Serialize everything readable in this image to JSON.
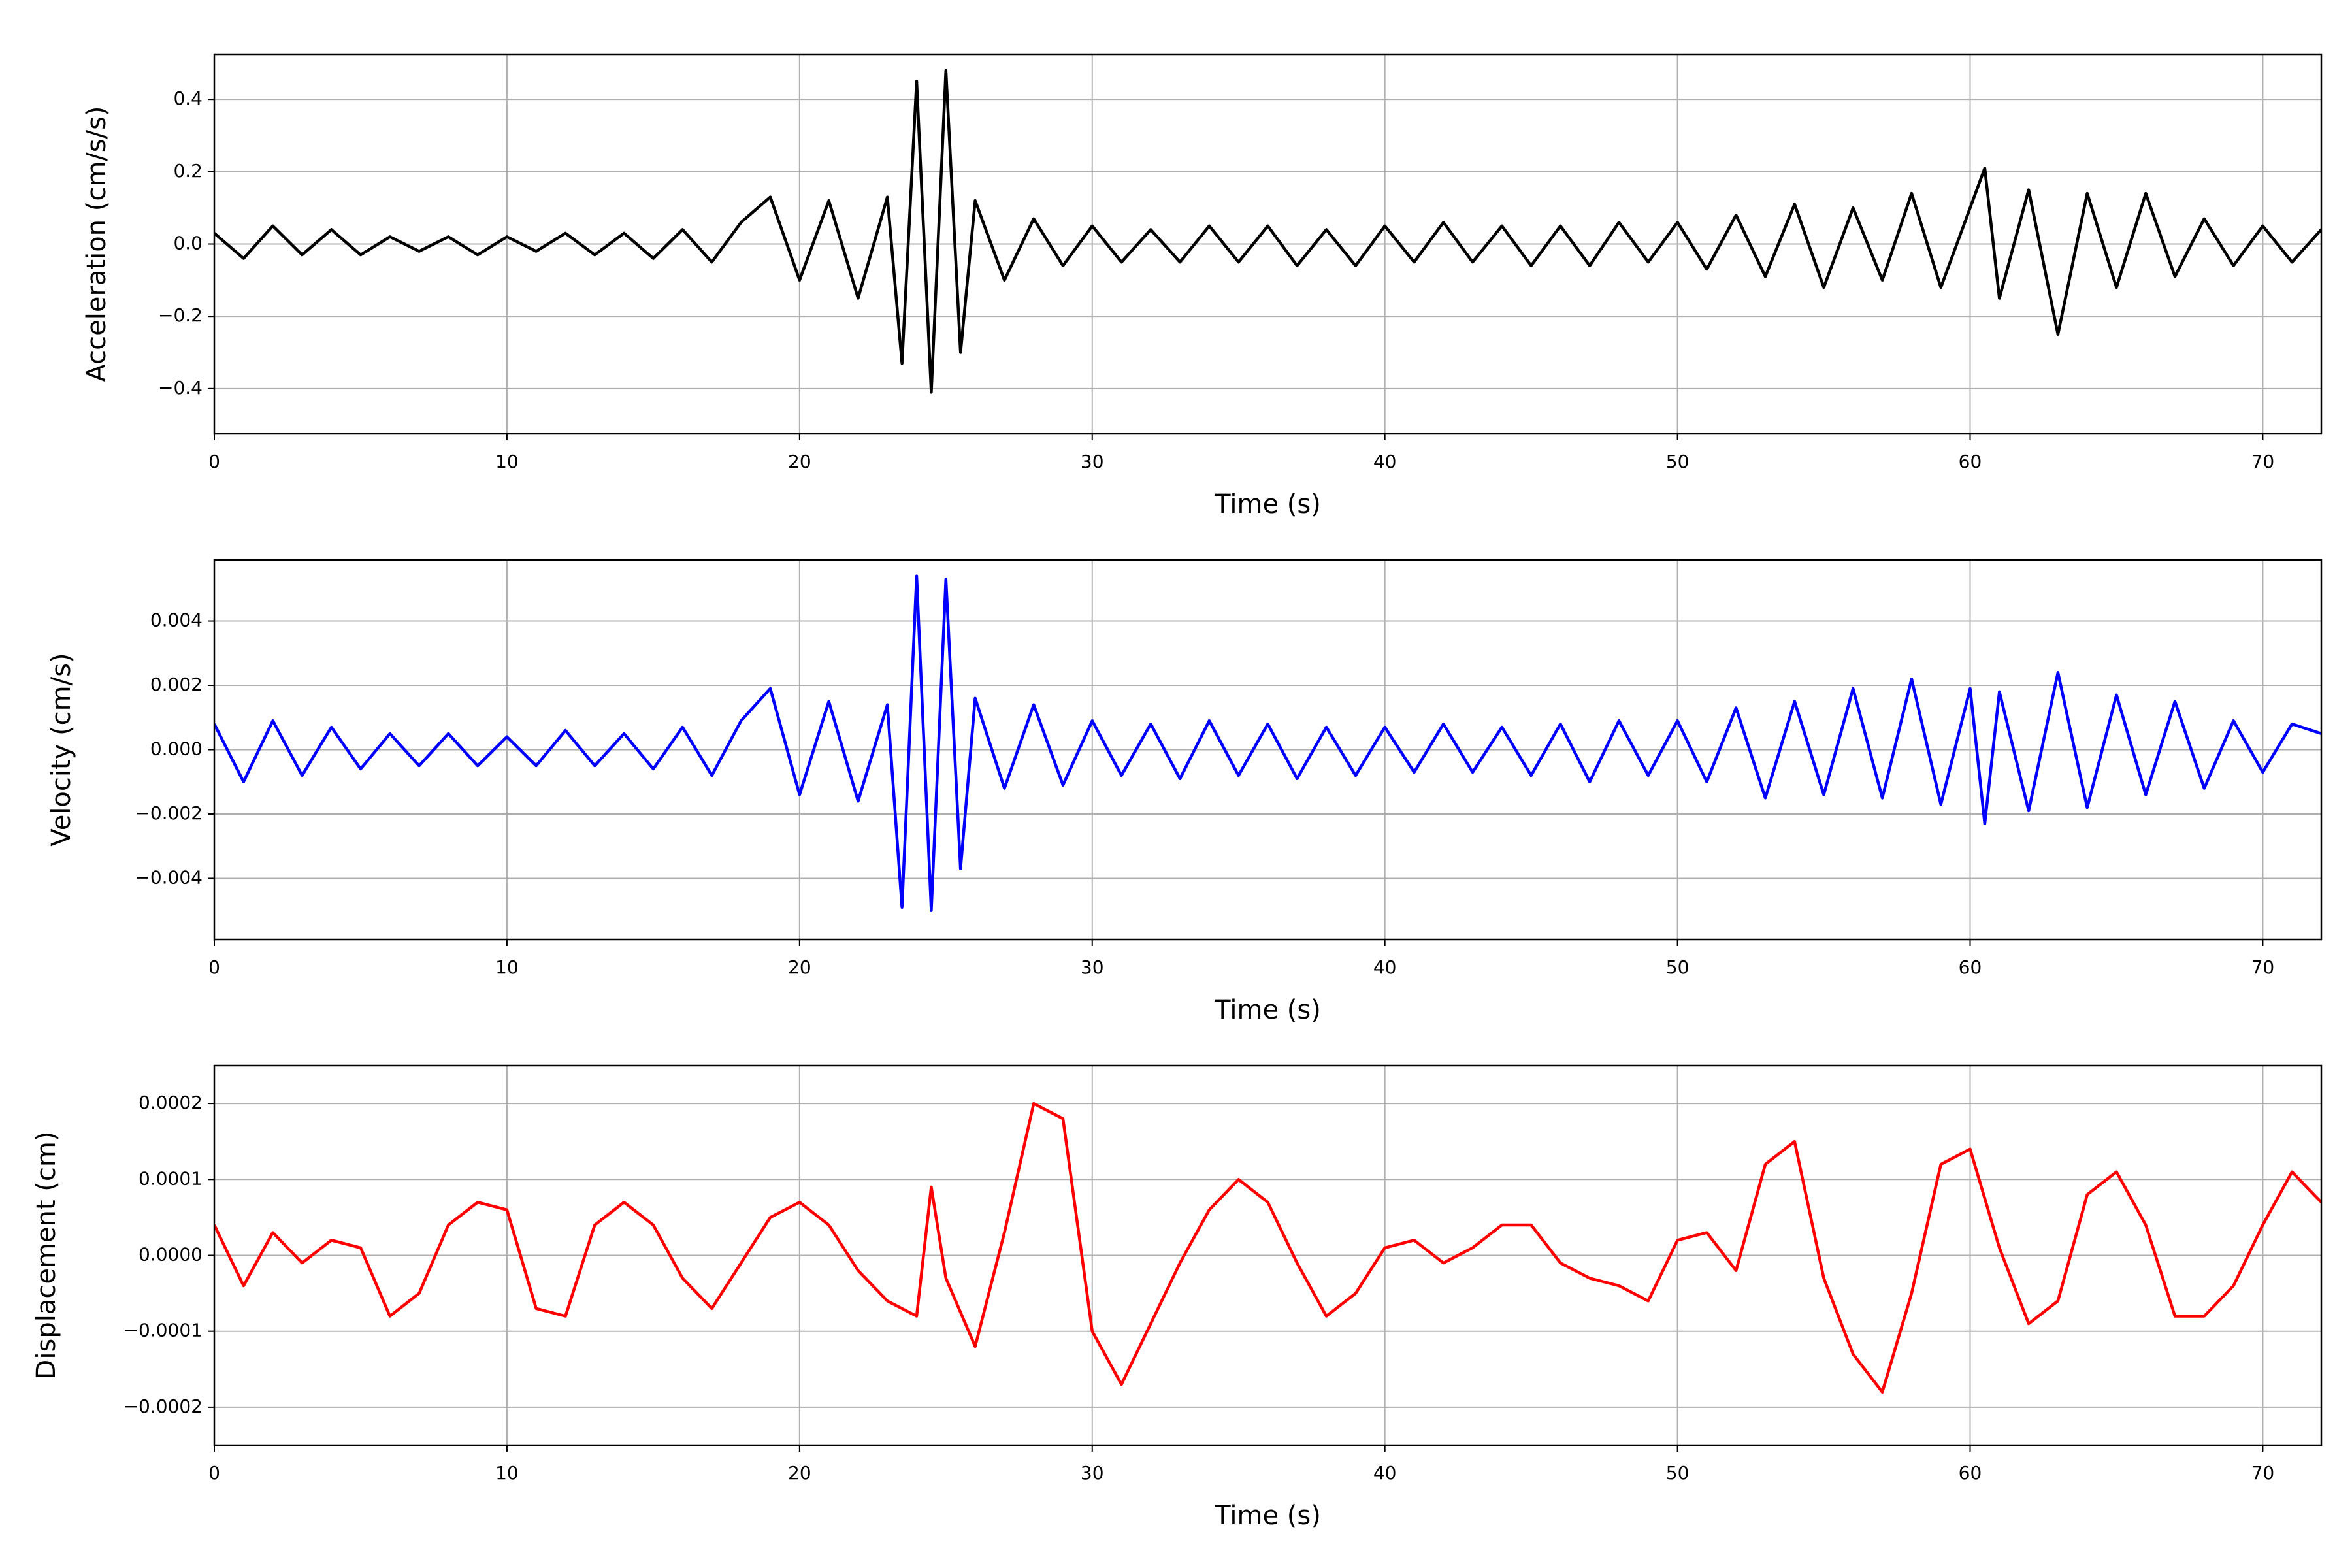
{
  "chart_data": [
    {
      "type": "line",
      "xlabel": "Time (s)",
      "ylabel": "Acceleration (cm/s/s)",
      "color": "#000000",
      "grid": true,
      "xlim": [
        0,
        72
      ],
      "xticks": [
        0,
        10,
        20,
        30,
        40,
        50,
        60,
        70
      ],
      "ylim": [
        -0.525,
        0.525
      ],
      "yticks": [
        {
          "value": -0.4,
          "label": "−0.4"
        },
        {
          "value": -0.2,
          "label": "−0.2"
        },
        {
          "value": 0,
          "label": "0.0"
        },
        {
          "value": 0.2,
          "label": "0.2"
        },
        {
          "value": 0.4,
          "label": "0.4"
        }
      ],
      "x": [
        0,
        1,
        2,
        3,
        4,
        5,
        6,
        7,
        8,
        9,
        10,
        11,
        12,
        13,
        14,
        15,
        16,
        17,
        18,
        19,
        20,
        21,
        22,
        23,
        23.5,
        24,
        24.5,
        25,
        25.5,
        26,
        27,
        28,
        29,
        30,
        31,
        32,
        33,
        34,
        35,
        36,
        37,
        38,
        39,
        40,
        41,
        42,
        43,
        44,
        45,
        46,
        47,
        48,
        49,
        50,
        51,
        52,
        53,
        54,
        55,
        56,
        57,
        58,
        59,
        60,
        60.5,
        61,
        62,
        63,
        64,
        65,
        66,
        67,
        68,
        69,
        70,
        71,
        72
      ],
      "values": [
        0.03,
        -0.04,
        0.05,
        -0.03,
        0.04,
        -0.03,
        0.02,
        -0.02,
        0.02,
        -0.03,
        0.02,
        -0.02,
        0.03,
        -0.03,
        0.03,
        -0.04,
        0.04,
        -0.05,
        0.06,
        0.13,
        -0.1,
        0.12,
        -0.15,
        0.13,
        -0.33,
        0.45,
        -0.41,
        0.48,
        -0.3,
        0.12,
        -0.1,
        0.07,
        -0.06,
        0.05,
        -0.05,
        0.04,
        -0.05,
        0.05,
        -0.05,
        0.05,
        -0.06,
        0.04,
        -0.06,
        0.05,
        -0.05,
        0.06,
        -0.05,
        0.05,
        -0.06,
        0.05,
        -0.06,
        0.06,
        -0.05,
        0.06,
        -0.07,
        0.08,
        -0.09,
        0.11,
        -0.12,
        0.1,
        -0.1,
        0.14,
        -0.12,
        0.1,
        0.21,
        -0.15,
        0.15,
        -0.25,
        0.14,
        -0.12,
        0.14,
        -0.09,
        0.07,
        -0.06,
        0.05,
        -0.05,
        0.04
      ]
    },
    {
      "type": "line",
      "xlabel": "Time (s)",
      "ylabel": "Velocity (cm/s)",
      "color": "#0000ff",
      "grid": true,
      "xlim": [
        0,
        72
      ],
      "xticks": [
        0,
        10,
        20,
        30,
        40,
        50,
        60,
        70
      ],
      "ylim": [
        -0.0059,
        0.0059
      ],
      "yticks": [
        {
          "value": -0.004,
          "label": "−0.004"
        },
        {
          "value": -0.002,
          "label": "−0.002"
        },
        {
          "value": 0,
          "label": "0.000"
        },
        {
          "value": 0.002,
          "label": "0.002"
        },
        {
          "value": 0.004,
          "label": "0.004"
        }
      ],
      "x": [
        0,
        1,
        2,
        3,
        4,
        5,
        6,
        7,
        8,
        9,
        10,
        11,
        12,
        13,
        14,
        15,
        16,
        17,
        18,
        19,
        20,
        21,
        22,
        23,
        23.5,
        24,
        24.5,
        25,
        25.5,
        26,
        27,
        28,
        29,
        30,
        31,
        32,
        33,
        34,
        35,
        36,
        37,
        38,
        39,
        40,
        41,
        42,
        43,
        44,
        45,
        46,
        47,
        48,
        49,
        50,
        51,
        52,
        53,
        54,
        55,
        56,
        57,
        58,
        59,
        60,
        60.5,
        61,
        62,
        63,
        64,
        65,
        66,
        67,
        68,
        69,
        70,
        71,
        72
      ],
      "values": [
        0.0008,
        -0.001,
        0.0009,
        -0.0008,
        0.0007,
        -0.0006,
        0.0005,
        -0.0005,
        0.0005,
        -0.0005,
        0.0004,
        -0.0005,
        0.0006,
        -0.0005,
        0.0005,
        -0.0006,
        0.0007,
        -0.0008,
        0.0009,
        0.0019,
        -0.0014,
        0.0015,
        -0.0016,
        0.0014,
        -0.0049,
        0.0054,
        -0.005,
        0.0053,
        -0.0037,
        0.0016,
        -0.0012,
        0.0014,
        -0.0011,
        0.0009,
        -0.0008,
        0.0008,
        -0.0009,
        0.0009,
        -0.0008,
        0.0008,
        -0.0009,
        0.0007,
        -0.0008,
        0.0007,
        -0.0007,
        0.0008,
        -0.0007,
        0.0007,
        -0.0008,
        0.0008,
        -0.001,
        0.0009,
        -0.0008,
        0.0009,
        -0.001,
        0.0013,
        -0.0015,
        0.0015,
        -0.0014,
        0.0019,
        -0.0015,
        0.0022,
        -0.0017,
        0.0019,
        -0.0023,
        0.0018,
        -0.0019,
        0.0024,
        -0.0018,
        0.0017,
        -0.0014,
        0.0015,
        -0.0012,
        0.0009,
        -0.0007,
        0.0008,
        0.0005
      ]
    },
    {
      "type": "line",
      "xlabel": "Time (s)",
      "ylabel": "Displacement (cm)",
      "color": "#ff0000",
      "grid": true,
      "xlim": [
        0,
        72
      ],
      "xticks": [
        0,
        10,
        20,
        30,
        40,
        50,
        60,
        70
      ],
      "ylim": [
        -0.00025,
        0.00025
      ],
      "yticks": [
        {
          "value": -0.0002,
          "label": "−0.0002"
        },
        {
          "value": -0.0001,
          "label": "−0.0001"
        },
        {
          "value": 0,
          "label": "0.0000"
        },
        {
          "value": 0.0001,
          "label": "0.0001"
        },
        {
          "value": 0.0002,
          "label": "0.0002"
        }
      ],
      "x": [
        0,
        1,
        2,
        3,
        4,
        5,
        6,
        7,
        8,
        9,
        10,
        11,
        12,
        13,
        14,
        15,
        16,
        17,
        18,
        19,
        20,
        21,
        22,
        23,
        24,
        24.5,
        25,
        26,
        27,
        28,
        29,
        30,
        31,
        32,
        33,
        34,
        35,
        36,
        37,
        38,
        39,
        40,
        41,
        42,
        43,
        44,
        45,
        46,
        47,
        48,
        49,
        50,
        51,
        52,
        53,
        54,
        55,
        56,
        57,
        58,
        59,
        60,
        61,
        62,
        63,
        64,
        65,
        66,
        67,
        68,
        69,
        70,
        71,
        72
      ],
      "values": [
        4e-05,
        -4e-05,
        3e-05,
        -1e-05,
        2e-05,
        1e-05,
        -8e-05,
        -5e-05,
        4e-05,
        7e-05,
        6e-05,
        -7e-05,
        -8e-05,
        4e-05,
        7e-05,
        4e-05,
        -3e-05,
        -7e-05,
        -1e-05,
        5e-05,
        7e-05,
        4e-05,
        -2e-05,
        -6e-05,
        -8e-05,
        9e-05,
        -3e-05,
        -0.00012,
        3e-05,
        0.0002,
        0.00018,
        -0.0001,
        -0.00017,
        -9e-05,
        -1e-05,
        6e-05,
        0.0001,
        7e-05,
        -1e-05,
        -8e-05,
        -5e-05,
        1e-05,
        2e-05,
        -1e-05,
        1e-05,
        4e-05,
        4e-05,
        -1e-05,
        -3e-05,
        -4e-05,
        -6e-05,
        2e-05,
        3e-05,
        -2e-05,
        0.00012,
        0.00015,
        -3e-05,
        -0.00013,
        -0.00018,
        -5e-05,
        0.00012,
        0.00014,
        1e-05,
        -9e-05,
        -6e-05,
        8e-05,
        0.00011,
        4e-05,
        -8e-05,
        -8e-05,
        -4e-05,
        4e-05,
        0.00011,
        7e-05
      ]
    }
  ]
}
